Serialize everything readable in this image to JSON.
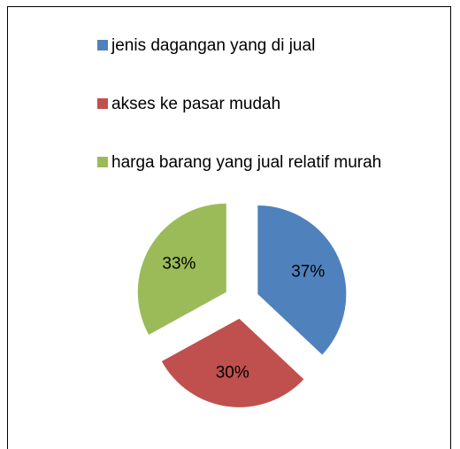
{
  "chart_data": {
    "type": "pie",
    "categories": [
      "jenis dagangan yang di jual",
      "akses ke pasar mudah",
      "harga barang yang jual relatif murah"
    ],
    "values": [
      37,
      30,
      33
    ],
    "value_labels": [
      "37%",
      "30%",
      "33%"
    ],
    "colors": [
      "#4f81bd",
      "#c0504d",
      "#9bbb59"
    ],
    "legend": "top"
  }
}
